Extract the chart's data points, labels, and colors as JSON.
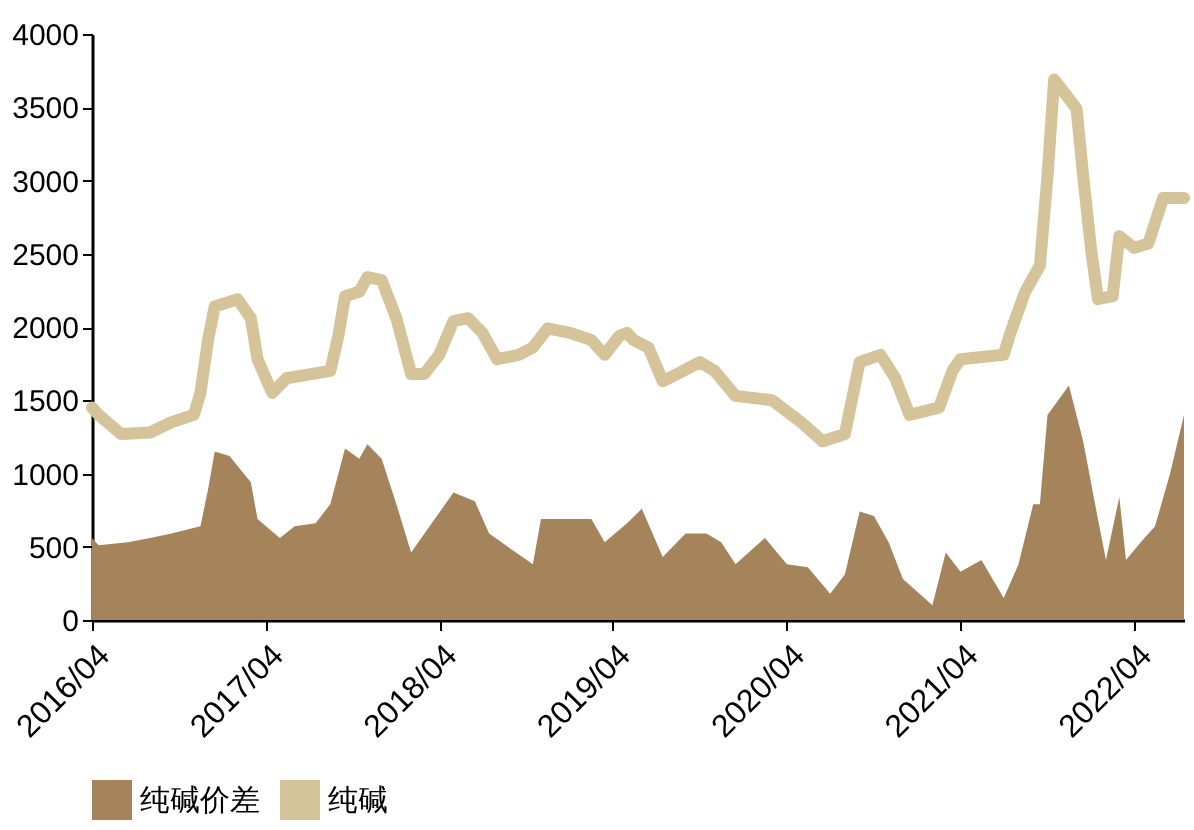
{
  "chart_data": {
    "type": "line",
    "series": [
      {
        "name": "纯碱价差",
        "type": "area",
        "color": "#a5845b",
        "x": [
          "2016-04-01",
          "2016-04-15",
          "2016-06-15",
          "2016-08-01",
          "2016-09-15",
          "2016-11-15",
          "2016-12-01",
          "2016-12-15",
          "2017-01-15",
          "2017-03-01",
          "2017-03-15",
          "2017-05-01",
          "2017-06-01",
          "2017-07-15",
          "2017-08-15",
          "2017-09-15",
          "2017-10-15",
          "2017-11-01",
          "2017-12-01",
          "2018-01-01",
          "2018-02-01",
          "2018-03-01",
          "2018-05-01",
          "2018-06-15",
          "2018-07-15",
          "2018-09-01",
          "2018-10-15",
          "2018-11-01",
          "2018-12-15",
          "2019-02-15",
          "2019-03-15",
          "2019-05-01",
          "2019-06-01",
          "2019-07-15",
          "2019-09-01",
          "2019-10-15",
          "2019-11-15",
          "2019-12-15",
          "2020-02-15",
          "2020-04-01",
          "2020-05-15",
          "2020-07-01",
          "2020-08-01",
          "2020-09-01",
          "2020-10-01",
          "2020-11-01",
          "2020-12-01",
          "2021-01-15",
          "2021-02-01",
          "2021-03-01",
          "2021-04-01",
          "2021-05-15",
          "2021-07-01",
          "2021-08-01",
          "2021-09-01",
          "2021-09-15",
          "2021-10-01",
          "2021-11-15",
          "2021-12-15",
          "2022-01-15",
          "2022-02-01",
          "2022-03-01",
          "2022-03-15",
          "2022-04-15",
          "2022-05-15",
          "2022-06-15",
          "2022-07-15"
        ],
        "values": [
          560,
          510,
          530,
          560,
          590,
          640,
          890,
          1150,
          1120,
          940,
          690,
          560,
          640,
          660,
          790,
          1170,
          1100,
          1200,
          1100,
          790,
          460,
          590,
          870,
          810,
          590,
          480,
          380,
          690,
          690,
          690,
          530,
          660,
          760,
          430,
          590,
          590,
          530,
          380,
          560,
          380,
          360,
          180,
          310,
          740,
          710,
          530,
          280,
          150,
          100,
          460,
          330,
          410,
          150,
          380,
          790,
          790,
          1400,
          1600,
          1220,
          690,
          410,
          840,
          410,
          530,
          640,
          990,
          1400
        ]
      },
      {
        "name": "纯碱",
        "color": "#d5c39a",
        "x": [
          "2016-04-01",
          "2016-04-15",
          "2016-06-01",
          "2016-08-01",
          "2016-09-15",
          "2016-11-01",
          "2016-11-15",
          "2016-12-01",
          "2016-12-15",
          "2017-02-01",
          "2017-03-01",
          "2017-03-15",
          "2017-04-15",
          "2017-05-15",
          "2017-08-15",
          "2017-09-01",
          "2017-09-15",
          "2017-10-15",
          "2017-11-01",
          "2017-12-01",
          "2018-01-01",
          "2018-02-01",
          "2018-03-01",
          "2018-04-01",
          "2018-05-01",
          "2018-06-01",
          "2018-07-01",
          "2018-08-01",
          "2018-09-15",
          "2018-10-15",
          "2018-11-15",
          "2019-01-01",
          "2019-02-15",
          "2019-03-15",
          "2019-04-15",
          "2019-05-01",
          "2019-05-15",
          "2019-06-15",
          "2019-07-15",
          "2019-08-15",
          "2019-10-01",
          "2019-11-01",
          "2019-12-15",
          "2020-03-01",
          "2020-05-01",
          "2020-06-15",
          "2020-08-01",
          "2020-09-01",
          "2020-10-15",
          "2020-11-15",
          "2020-12-15",
          "2021-02-15",
          "2021-03-15",
          "2021-04-01",
          "2021-07-01",
          "2021-07-15",
          "2021-08-15",
          "2021-09-15",
          "2021-10-01",
          "2021-10-15",
          "2021-12-01",
          "2021-12-15",
          "2022-01-01",
          "2022-01-15",
          "2022-02-15",
          "2022-03-01",
          "2022-04-01",
          "2022-05-01",
          "2022-06-01",
          "2022-07-15"
        ],
        "values": [
          1450,
          1400,
          1270,
          1280,
          1350,
          1400,
          1550,
          1910,
          2140,
          2190,
          2060,
          1780,
          1550,
          1650,
          1700,
          1940,
          2210,
          2240,
          2340,
          2320,
          2060,
          1680,
          1680,
          1810,
          2040,
          2060,
          1960,
          1780,
          1810,
          1860,
          1990,
          1960,
          1910,
          1810,
          1940,
          1960,
          1910,
          1860,
          1630,
          1680,
          1760,
          1700,
          1530,
          1500,
          1350,
          1220,
          1270,
          1760,
          1810,
          1650,
          1400,
          1450,
          1700,
          1780,
          1810,
          1960,
          2240,
          2420,
          3030,
          3690,
          3490,
          3030,
          2520,
          2190,
          2210,
          2620,
          2540,
          2570,
          2880,
          2880
        ]
      }
    ],
    "xlim": [
      "2016-04-01",
      "2022-07-15"
    ],
    "xticks": [
      {
        "value": "2016-04-01",
        "label": "2016/04"
      },
      {
        "value": "2017-04-01",
        "label": "2017/04"
      },
      {
        "value": "2018-04-01",
        "label": "2018/04"
      },
      {
        "value": "2019-04-01",
        "label": "2019/04"
      },
      {
        "value": "2020-04-01",
        "label": "2020/04"
      },
      {
        "value": "2021-04-01",
        "label": "2021/04"
      },
      {
        "value": "2022-04-01",
        "label": "2022/04"
      }
    ],
    "ylim": [
      0,
      4000
    ],
    "yticks": [
      0,
      500,
      1000,
      1500,
      2000,
      2500,
      3000,
      3500,
      4000
    ],
    "legend": "bottom",
    "grid": false,
    "line_style": "solid"
  }
}
